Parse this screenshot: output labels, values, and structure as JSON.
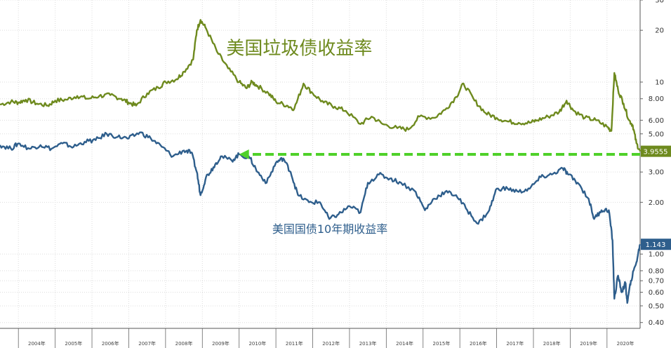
{
  "chart_data": {
    "type": "line",
    "title": "",
    "xlabel": "",
    "ylabel": "",
    "x_range": [
      2003.5,
      2020.9
    ],
    "y_scale": "log",
    "ylim": [
      0.37,
      30
    ],
    "y_ticks": [
      {
        "v": 30,
        "label": "30"
      },
      {
        "v": 20,
        "label": "20"
      },
      {
        "v": 10,
        "label": "10"
      },
      {
        "v": 8,
        "label": "8.00"
      },
      {
        "v": 6,
        "label": "6.00"
      },
      {
        "v": 5,
        "label": "5.00"
      },
      {
        "v": 3,
        "label": "3.00"
      },
      {
        "v": 2,
        "label": "2.00"
      },
      {
        "v": 1,
        "label": "1.00"
      },
      {
        "v": 0.8,
        "label": "0.80"
      },
      {
        "v": 0.7,
        "label": "0.70"
      },
      {
        "v": 0.6,
        "label": "0.60"
      },
      {
        "v": 0.5,
        "label": "0.50"
      },
      {
        "v": 0.4,
        "label": "0.40"
      }
    ],
    "x_ticks": [
      {
        "v": 2004.5,
        "label": "2004年"
      },
      {
        "v": 2005.5,
        "label": "2005年"
      },
      {
        "v": 2006.5,
        "label": "2006年"
      },
      {
        "v": 2007.5,
        "label": "2007年"
      },
      {
        "v": 2008.5,
        "label": "2008年"
      },
      {
        "v": 2009.5,
        "label": "2009年"
      },
      {
        "v": 2010.5,
        "label": "2010年"
      },
      {
        "v": 2011.5,
        "label": "2011年"
      },
      {
        "v": 2012.5,
        "label": "2012年"
      },
      {
        "v": 2013.5,
        "label": "2013年"
      },
      {
        "v": 2014.5,
        "label": "2014年"
      },
      {
        "v": 2015.5,
        "label": "2015年"
      },
      {
        "v": 2016.5,
        "label": "2016年"
      },
      {
        "v": 2017.5,
        "label": "2017年"
      },
      {
        "v": 2018.5,
        "label": "2018年"
      },
      {
        "v": 2019.5,
        "label": "2019年"
      },
      {
        "v": 2020.5,
        "label": "2020年"
      }
    ],
    "grid": true,
    "series": [
      {
        "name": "美国垃圾债收益率",
        "color": "#6e8a1e",
        "last_value_label": "3.9555",
        "points": [
          [
            2003.5,
            7.4
          ],
          [
            2003.8,
            7.7
          ],
          [
            2004.0,
            7.6
          ],
          [
            2004.2,
            7.9
          ],
          [
            2004.5,
            7.5
          ],
          [
            2004.8,
            7.3
          ],
          [
            2005.0,
            7.8
          ],
          [
            2005.3,
            7.9
          ],
          [
            2005.6,
            8.3
          ],
          [
            2005.9,
            8.0
          ],
          [
            2006.2,
            8.3
          ],
          [
            2006.5,
            8.4
          ],
          [
            2006.8,
            8.0
          ],
          [
            2007.0,
            7.6
          ],
          [
            2007.2,
            7.3
          ],
          [
            2007.5,
            8.6
          ],
          [
            2007.8,
            9.3
          ],
          [
            2008.0,
            10.0
          ],
          [
            2008.3,
            10.4
          ],
          [
            2008.5,
            11.5
          ],
          [
            2008.75,
            13.5
          ],
          [
            2008.85,
            20.0
          ],
          [
            2008.95,
            23.0
          ],
          [
            2009.1,
            20.5
          ],
          [
            2009.4,
            15.0
          ],
          [
            2009.7,
            12.0
          ],
          [
            2010.0,
            10.0
          ],
          [
            2010.2,
            9.2
          ],
          [
            2010.35,
            10.0
          ],
          [
            2010.5,
            9.5
          ],
          [
            2010.8,
            8.6
          ],
          [
            2011.0,
            7.7
          ],
          [
            2011.3,
            7.3
          ],
          [
            2011.5,
            7.0
          ],
          [
            2011.75,
            9.8
          ],
          [
            2012.0,
            8.6
          ],
          [
            2012.3,
            7.6
          ],
          [
            2012.6,
            7.2
          ],
          [
            2012.9,
            6.8
          ],
          [
            2013.3,
            5.7
          ],
          [
            2013.6,
            6.3
          ],
          [
            2013.9,
            5.7
          ],
          [
            2014.3,
            5.4
          ],
          [
            2014.6,
            5.3
          ],
          [
            2014.9,
            6.3
          ],
          [
            2015.3,
            6.2
          ],
          [
            2015.6,
            6.9
          ],
          [
            2015.9,
            8.2
          ],
          [
            2016.1,
            9.8
          ],
          [
            2016.4,
            7.8
          ],
          [
            2016.7,
            6.6
          ],
          [
            2017.0,
            6.2
          ],
          [
            2017.3,
            5.9
          ],
          [
            2017.6,
            5.8
          ],
          [
            2017.9,
            5.8
          ],
          [
            2018.1,
            6.0
          ],
          [
            2018.4,
            6.3
          ],
          [
            2018.7,
            6.7
          ],
          [
            2018.9,
            7.8
          ],
          [
            2019.1,
            6.8
          ],
          [
            2019.4,
            6.2
          ],
          [
            2019.7,
            6.0
          ],
          [
            2020.0,
            5.5
          ],
          [
            2020.12,
            5.2
          ],
          [
            2020.2,
            11.3
          ],
          [
            2020.3,
            9.0
          ],
          [
            2020.45,
            7.5
          ],
          [
            2020.6,
            6.0
          ],
          [
            2020.7,
            5.6
          ],
          [
            2020.8,
            4.4
          ],
          [
            2020.9,
            3.96
          ]
        ]
      },
      {
        "name": "美国国债10年期收益率",
        "color": "#2e5e8c",
        "last_value_label": "1.143",
        "points": [
          [
            2003.5,
            4.3
          ],
          [
            2003.8,
            4.1
          ],
          [
            2004.0,
            4.4
          ],
          [
            2004.3,
            4.1
          ],
          [
            2004.6,
            4.3
          ],
          [
            2004.9,
            4.1
          ],
          [
            2005.2,
            4.4
          ],
          [
            2005.5,
            4.2
          ],
          [
            2005.8,
            4.5
          ],
          [
            2006.1,
            4.6
          ],
          [
            2006.4,
            5.0
          ],
          [
            2006.7,
            4.8
          ],
          [
            2007.0,
            4.7
          ],
          [
            2007.3,
            5.1
          ],
          [
            2007.6,
            4.7
          ],
          [
            2007.9,
            4.2
          ],
          [
            2008.2,
            3.7
          ],
          [
            2008.5,
            4.0
          ],
          [
            2008.7,
            3.9
          ],
          [
            2008.85,
            3.0
          ],
          [
            2008.95,
            2.2
          ],
          [
            2009.1,
            2.8
          ],
          [
            2009.3,
            3.2
          ],
          [
            2009.5,
            3.7
          ],
          [
            2009.8,
            3.5
          ],
          [
            2010.0,
            3.8
          ],
          [
            2010.3,
            3.6
          ],
          [
            2010.5,
            3.0
          ],
          [
            2010.75,
            2.6
          ],
          [
            2011.0,
            3.4
          ],
          [
            2011.2,
            3.6
          ],
          [
            2011.4,
            3.0
          ],
          [
            2011.6,
            2.2
          ],
          [
            2011.9,
            2.0
          ],
          [
            2012.2,
            2.0
          ],
          [
            2012.45,
            1.6
          ],
          [
            2012.7,
            1.7
          ],
          [
            2013.0,
            1.9
          ],
          [
            2013.3,
            1.75
          ],
          [
            2013.5,
            2.6
          ],
          [
            2013.8,
            2.9
          ],
          [
            2014.1,
            2.75
          ],
          [
            2014.4,
            2.6
          ],
          [
            2014.8,
            2.3
          ],
          [
            2015.05,
            1.8
          ],
          [
            2015.3,
            2.1
          ],
          [
            2015.6,
            2.3
          ],
          [
            2015.9,
            2.2
          ],
          [
            2016.2,
            1.8
          ],
          [
            2016.5,
            1.5
          ],
          [
            2016.8,
            1.8
          ],
          [
            2017.0,
            2.4
          ],
          [
            2017.3,
            2.4
          ],
          [
            2017.6,
            2.3
          ],
          [
            2017.9,
            2.4
          ],
          [
            2018.2,
            2.8
          ],
          [
            2018.5,
            2.9
          ],
          [
            2018.8,
            3.15
          ],
          [
            2018.95,
            2.9
          ],
          [
            2019.2,
            2.6
          ],
          [
            2019.5,
            2.1
          ],
          [
            2019.65,
            1.6
          ],
          [
            2019.85,
            1.8
          ],
          [
            2020.05,
            1.8
          ],
          [
            2020.15,
            1.2
          ],
          [
            2020.2,
            0.55
          ],
          [
            2020.3,
            0.75
          ],
          [
            2020.4,
            0.6
          ],
          [
            2020.5,
            0.68
          ],
          [
            2020.55,
            0.52
          ],
          [
            2020.65,
            0.7
          ],
          [
            2020.8,
            0.9
          ],
          [
            2020.9,
            1.14
          ]
        ]
      }
    ],
    "annotations": [
      {
        "kind": "text",
        "text": "美国垃圾债收益率",
        "color": "#6e8a1e"
      },
      {
        "kind": "text",
        "text": "美国国债10年期收益率",
        "color": "#2e5e8c"
      },
      {
        "kind": "dashed-arrow",
        "from_x": 2020.9,
        "to_x": 2010.0,
        "y": 3.8,
        "color": "#4fd12a"
      }
    ]
  }
}
